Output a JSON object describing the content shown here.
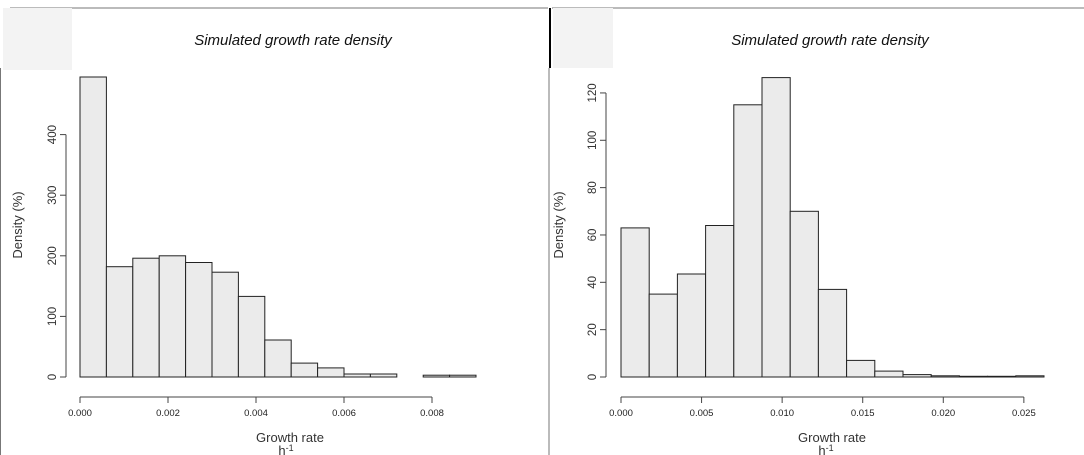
{
  "chart_data": [
    {
      "type": "bar",
      "title": "Simulated growth rate density",
      "xlabel": "Growth rate",
      "xlabel_unit": "h-1",
      "ylabel": "Density (%)",
      "bin_width": 0.0006,
      "bin_start": 0.0,
      "values": [
        495,
        182,
        196,
        200,
        189,
        173,
        133,
        61,
        23,
        15,
        5,
        5,
        0,
        3,
        3
      ],
      "xlim": [
        0.0,
        0.009
      ],
      "ylim": [
        0,
        500
      ],
      "xticks": [
        0.0,
        0.002,
        0.004,
        0.006,
        0.008
      ],
      "xtick_labels": [
        "0.000",
        "0.002",
        "0.004",
        "0.006",
        "0.008"
      ],
      "yticks": [
        0,
        100,
        200,
        300,
        400
      ],
      "ytick_labels": [
        "0",
        "100",
        "200",
        "300",
        "400"
      ]
    },
    {
      "type": "bar",
      "title": "Simulated growth rate density",
      "xlabel": "Growth rate",
      "xlabel_unit": "h-1",
      "ylabel": "Density (%)",
      "bin_width": 0.00175,
      "bin_start": 0.0,
      "values": [
        63,
        35,
        43.5,
        64,
        115,
        126.5,
        70,
        37,
        7,
        2.5,
        1,
        0.5,
        0.3,
        0.3,
        0.5
      ],
      "xlim": [
        0.0,
        0.02625
      ],
      "ylim": [
        0,
        128
      ],
      "xticks": [
        0.0,
        0.005,
        0.01,
        0.015,
        0.02,
        0.025
      ],
      "xtick_labels": [
        "0.000",
        "0.005",
        "0.010",
        "0.015",
        "0.020",
        "0.025"
      ],
      "yticks": [
        0,
        20,
        40,
        60,
        80,
        100,
        120
      ],
      "ytick_labels": [
        "0",
        "20",
        "40",
        "60",
        "80",
        "100",
        "120"
      ]
    }
  ]
}
